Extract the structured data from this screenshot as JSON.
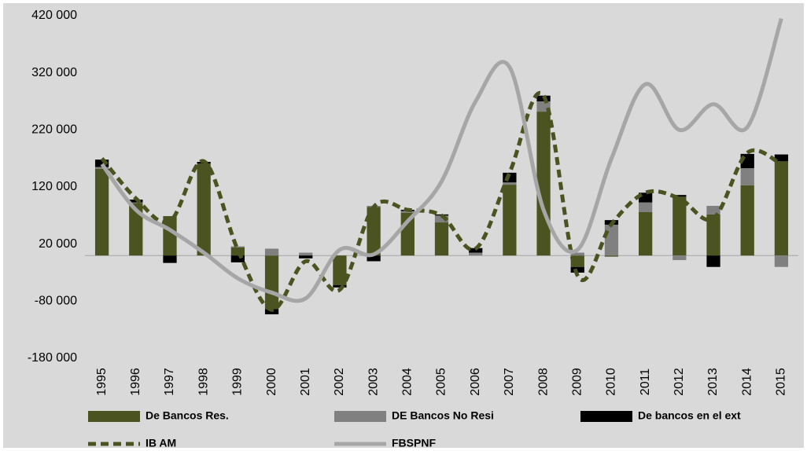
{
  "chart_data": {
    "type": "bar",
    "categories": [
      "1995",
      "1996",
      "1997",
      "1998",
      "1999",
      "2000",
      "2001",
      "2002",
      "2003",
      "2004",
      "2005",
      "2006",
      "2007",
      "2008",
      "2009",
      "2010",
      "2011",
      "2012",
      "2013",
      "2014",
      "2015"
    ],
    "ylim": [
      -180000,
      420000
    ],
    "yticks": [
      {
        "value": -180000,
        "label": "-180 000"
      },
      {
        "value": -80000,
        "label": "-80 000"
      },
      {
        "value": 20000,
        "label": "20 000"
      },
      {
        "value": 120000,
        "label": "120 000"
      },
      {
        "value": 220000,
        "label": "220 000"
      },
      {
        "value": 320000,
        "label": "320 000"
      },
      {
        "value": 420000,
        "label": "420 000"
      }
    ],
    "series": [
      {
        "name": "De Bancos Res.",
        "type": "bar",
        "color": "#4b5320",
        "values": [
          152000,
          92000,
          69000,
          161000,
          14000,
          -94000,
          0,
          -52000,
          85000,
          75000,
          58000,
          0,
          124000,
          252000,
          -20000,
          -2000,
          76000,
          103000,
          72000,
          123000,
          165000
        ]
      },
      {
        "name": "DE Bancos No Resi",
        "type": "bar",
        "color": "#808080",
        "values": [
          3000,
          1000,
          0,
          0,
          2000,
          12000,
          5000,
          0,
          2000,
          3000,
          12000,
          5000,
          4000,
          18000,
          5000,
          54000,
          17000,
          -8000,
          15000,
          30000,
          -20000
        ]
      },
      {
        "name": "De bancos en el ext",
        "type": "bar",
        "color": "#000000",
        "values": [
          13000,
          5000,
          -13000,
          3000,
          -12000,
          -9000,
          -5000,
          -4000,
          -10000,
          2000,
          2000,
          8000,
          17000,
          10000,
          -10000,
          8000,
          17000,
          3000,
          -20000,
          25000,
          12000
        ]
      },
      {
        "name": "IB AM",
        "type": "line",
        "color": "#4b5320",
        "dashed": true,
        "values": [
          170000,
          100000,
          60000,
          165000,
          10000,
          -95000,
          -10000,
          -60000,
          85000,
          80000,
          70000,
          12000,
          145000,
          280000,
          -35000,
          55000,
          110000,
          100000,
          65000,
          180000,
          160000
        ]
      },
      {
        "name": "FBSPNF",
        "type": "line",
        "color": "#a6a6a6",
        "dashed": false,
        "values": [
          160000,
          80000,
          45000,
          5000,
          -40000,
          -65000,
          -75000,
          10000,
          2000,
          60000,
          130000,
          270000,
          330000,
          80000,
          10000,
          170000,
          300000,
          220000,
          265000,
          225000,
          415000
        ]
      }
    ]
  }
}
